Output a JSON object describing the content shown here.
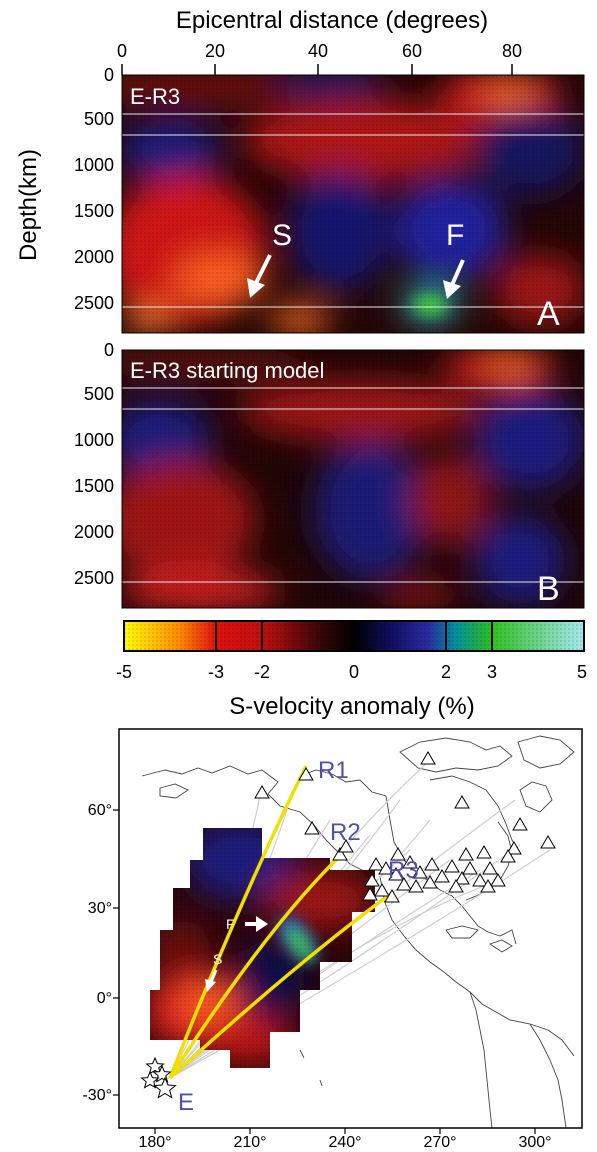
{
  "panel_a": {
    "title": "E-R3",
    "letter": "A",
    "x_axis_title": "Epicentral distance (degrees)",
    "x_ticks": [
      "0",
      "20",
      "40",
      "60",
      "80"
    ],
    "y_axis_title": "Depth(km)",
    "y_ticks": [
      "0",
      "500",
      "1000",
      "1500",
      "2000",
      "2500"
    ],
    "annotation_s": "S",
    "annotation_f": "F"
  },
  "panel_b": {
    "title": "E-R3 starting model",
    "letter": "B",
    "y_ticks": [
      "0",
      "500",
      "1000",
      "1500",
      "2000",
      "2500"
    ]
  },
  "colorbar": {
    "title": "S-velocity anomaly (%)",
    "ticks": [
      "-5",
      "-3",
      "-2",
      "0",
      "2",
      "3",
      "5"
    ],
    "colors": [
      "#ffff00",
      "#ff8c00",
      "#e01010",
      "#b01010",
      "#2a0808",
      "#000000",
      "#101060",
      "#2a2aa0",
      "#0090a0",
      "#30c020",
      "#a8e8f0"
    ]
  },
  "map": {
    "lat_ticks": [
      "60°",
      "30°",
      "0°",
      "-30°"
    ],
    "lon_ticks": [
      "180°",
      "210°",
      "240°",
      "270°",
      "300°"
    ],
    "receiver_labels": [
      "R1",
      "R2",
      "R3"
    ],
    "event_label": "E",
    "annotation_f": "F",
    "annotation_s": "S",
    "station_symbol": "open-triangle",
    "event_symbol": "open-star",
    "path_color": "#f0e000"
  }
}
